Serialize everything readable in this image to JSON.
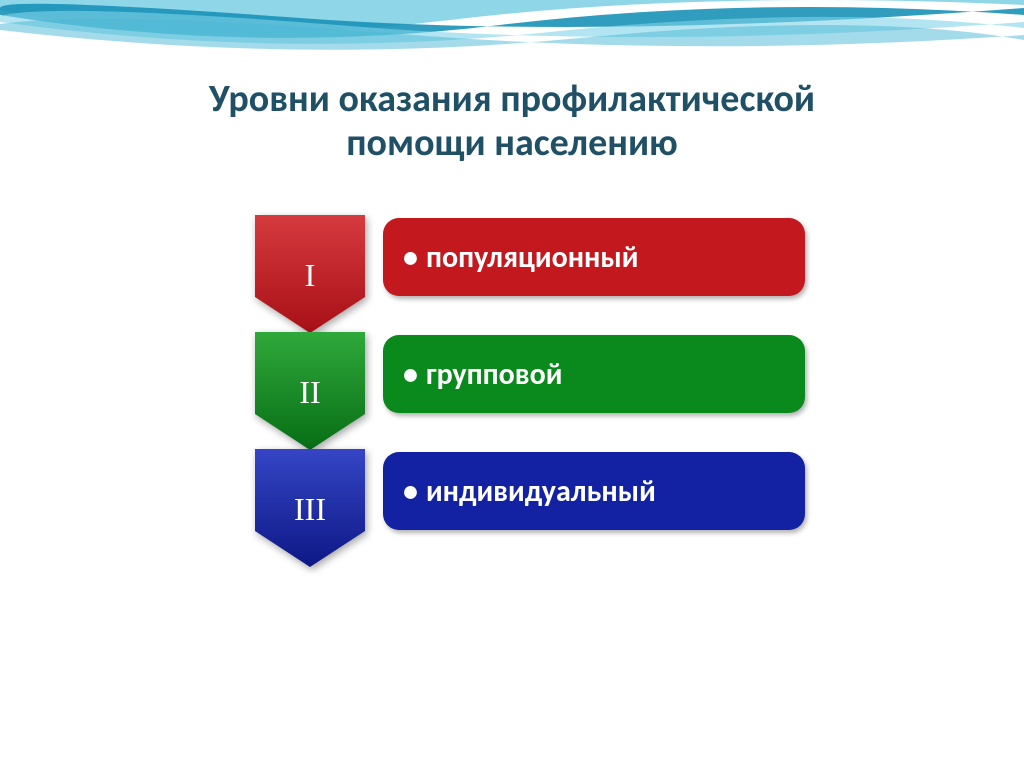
{
  "title": {
    "line1": "Уровни оказания профилактической",
    "line2": "помощи населению",
    "color": "#1f5066",
    "fontsize": 38
  },
  "diagram": {
    "type": "infographic",
    "chevron_label_fontsize": 32,
    "pill_text_fontsize": 30,
    "bullet": "•",
    "levels": [
      {
        "numeral": "I",
        "label": "популяционный",
        "color": "#c4181f",
        "chevron_gradient_top": "#d53a3f",
        "chevron_gradient_bottom": "#a80f16"
      },
      {
        "numeral": "II",
        "label": "групповой",
        "color": "#0a8a1c",
        "chevron_gradient_top": "#2fa83b",
        "chevron_gradient_bottom": "#076e15"
      },
      {
        "numeral": "III",
        "label": "индивидуальный",
        "color": "#1322a3",
        "chevron_gradient_top": "#3545c5",
        "chevron_gradient_bottom": "#0d1885"
      }
    ]
  },
  "wave": {
    "colors": [
      "#5ec5de",
      "#2aa0c2",
      "#ffffff"
    ]
  }
}
